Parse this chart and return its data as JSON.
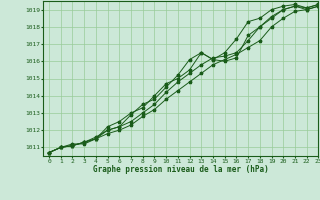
{
  "bg_color": "#cce8d8",
  "grid_color": "#99cc99",
  "line_color": "#1a5c1a",
  "marker": "*",
  "xlabel": "Graphe pression niveau de la mer (hPa)",
  "xlim": [
    -0.5,
    23
  ],
  "ylim": [
    1010.5,
    1019.5
  ],
  "yticks": [
    1011,
    1012,
    1013,
    1014,
    1015,
    1016,
    1017,
    1018,
    1019
  ],
  "xticks": [
    0,
    1,
    2,
    3,
    4,
    5,
    6,
    7,
    8,
    9,
    10,
    11,
    12,
    13,
    14,
    15,
    16,
    17,
    18,
    19,
    20,
    21,
    22,
    23
  ],
  "series": [
    [
      1010.7,
      1011.0,
      1011.1,
      1011.3,
      1011.5,
      1012.2,
      1012.5,
      1013.0,
      1013.3,
      1014.0,
      1014.7,
      1015.0,
      1015.5,
      1016.5,
      1016.1,
      1016.5,
      1017.3,
      1018.3,
      1018.5,
      1019.0,
      1019.2,
      1019.3,
      1019.1,
      1019.3
    ],
    [
      1010.7,
      1011.0,
      1011.2,
      1011.2,
      1011.5,
      1012.0,
      1012.2,
      1012.9,
      1013.5,
      1013.8,
      1014.5,
      1015.2,
      1016.1,
      1016.5,
      1016.1,
      1016.0,
      1016.2,
      1017.5,
      1018.0,
      1018.5,
      1019.0,
      1019.2,
      1019.0,
      1019.2
    ],
    [
      1010.7,
      1011.0,
      1011.1,
      1011.3,
      1011.6,
      1012.0,
      1012.2,
      1012.5,
      1013.0,
      1013.5,
      1014.2,
      1014.8,
      1015.3,
      1015.8,
      1016.2,
      1016.3,
      1016.5,
      1017.2,
      1018.0,
      1018.6,
      1019.0,
      1019.2,
      1019.1,
      1019.3
    ],
    [
      1010.7,
      1011.0,
      1011.1,
      1011.3,
      1011.5,
      1011.8,
      1012.0,
      1012.3,
      1012.8,
      1013.2,
      1013.8,
      1014.3,
      1014.8,
      1015.3,
      1015.8,
      1016.1,
      1016.4,
      1016.8,
      1017.2,
      1018.0,
      1018.5,
      1018.9,
      1019.0,
      1019.2
    ]
  ]
}
